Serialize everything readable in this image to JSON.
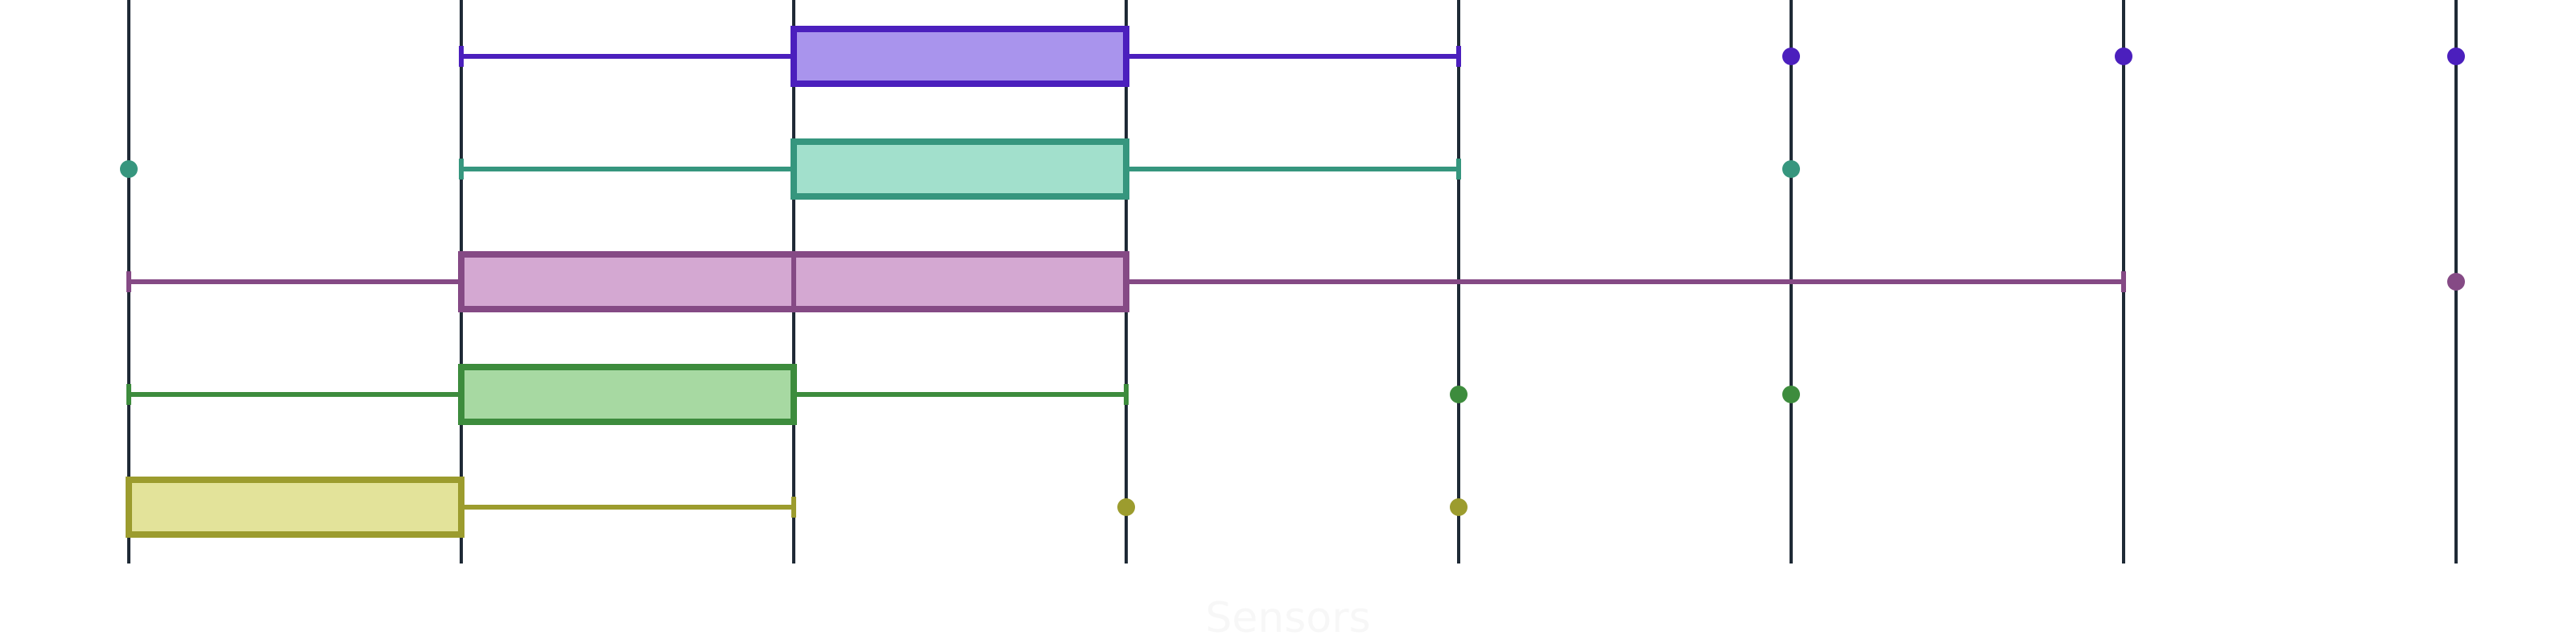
{
  "chart_data": {
    "type": "boxplot",
    "orientation": "horizontal",
    "xlabel": "Sensors",
    "xlabel_color": "#f7f7f7",
    "xlim": [
      0,
      7.3
    ],
    "x_gridlines": [
      0,
      1,
      2,
      3,
      4,
      5,
      6,
      7
    ],
    "gridline_color": "#1f2a36",
    "grid": true,
    "series": [
      {
        "color": "#4b1fbd",
        "fill": "#a994ed",
        "whisker_low": 1,
        "q1": 2,
        "median": 2,
        "q3": 3,
        "whisker_high": 4,
        "outliers": [
          5,
          6,
          7
        ]
      },
      {
        "color": "#36967e",
        "fill": "#a2e0cc",
        "whisker_low": 1,
        "q1": 2,
        "median": 2,
        "q3": 3,
        "whisker_high": 4,
        "outliers": [
          0,
          5
        ]
      },
      {
        "color": "#854a85",
        "fill": "#d4a8d2",
        "whisker_low": 0,
        "q1": 1,
        "median": 2,
        "q3": 3,
        "whisker_high": 6,
        "outliers": [
          7
        ]
      },
      {
        "color": "#3d8c3d",
        "fill": "#a7d9a2",
        "whisker_low": 0,
        "q1": 1,
        "median": 2,
        "q3": 2,
        "whisker_high": 3,
        "outliers": [
          4,
          5
        ]
      },
      {
        "color": "#9c9c2e",
        "fill": "#e3e39a",
        "whisker_low": 0,
        "q1": 0,
        "median": 0,
        "q3": 1,
        "whisker_high": 2,
        "outliers": [
          3,
          4
        ]
      }
    ]
  }
}
